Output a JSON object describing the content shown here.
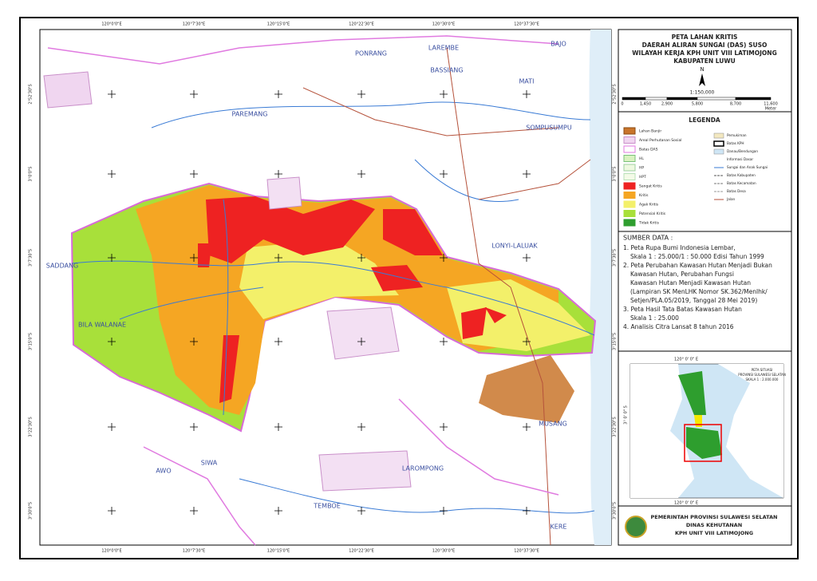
{
  "title": [
    "PETA LAHAN KRITIS",
    "DAERAH ALIRAN SUNGAI (DAS) SUSO",
    "WILAYAH KERJA KPH UNIT VIII LATIMOJONG",
    "KABUPATEN LUWU"
  ],
  "north": "N",
  "scale": {
    "ratio": "1:150,000",
    "ticks": [
      "0",
      "1,450",
      "2,900",
      "5,800",
      "8,700",
      "11,600"
    ],
    "unit": "Meter"
  },
  "legend": {
    "title": "LEGENDA",
    "left": [
      "Lahan Banjir",
      "Areal Perhutanan Sosial",
      "Batas DAS",
      "HL",
      "HP",
      "HPT",
      "Sangat Kritis",
      "Kritis",
      "Agak Kritis",
      "Potensial Kritis",
      "Tidak Kritis"
    ],
    "right": [
      "Pemukiman",
      "Batas KPH",
      "Danau/Bendungan",
      "Informasi Dasar",
      "Sungai dan Anak Sungai",
      "Batas Kabupaten",
      "Batas Kecamatan",
      "Batas Desa",
      "Jalan"
    ]
  },
  "sources": {
    "heading": "SUMBER DATA :",
    "lines": [
      "1. Peta Rupa Bumi Indonesia Lembar,",
      "Skala 1 : 25.000/1 : 50.000 Edisi Tahun 1999",
      "2. Peta Perubahan Kawasan Hutan Menjadi Bukan",
      "Kawasan Hutan, Perubahan Fungsi",
      "Kawasan Hutan Menjadi Kawasan Hutan",
      "(Lampiran SK MenLHK Nomor SK.362/Menlhk/",
      "Setjen/PLA.05/2019, Tanggal 28 Mei 2019)",
      "3. Peta Hasil Tata Batas Kawasan Hutan",
      "Skala 1 : 25.000",
      "4. Analisis Citra Lansat 8 tahun 2016"
    ]
  },
  "inset": {
    "lines": [
      "PETA SITUASI",
      "PROVINSI SULAWESI SELATAN",
      "SKALA 1 : 2.000.000"
    ],
    "lon": "120° 0' 0\" E",
    "lat": "3° 0' 0\" S"
  },
  "footer": [
    "PEMERINTAH PROVINSI SULAWESI SELATAN",
    "DINAS KEHUTANAN",
    "KPH UNIT VIII LATIMOJONG"
  ],
  "coords": {
    "lon": [
      "120°0'0\"E",
      "120°7'30\"E",
      "120°15'0\"E",
      "120°22'30\"E",
      "120°30'0\"E",
      "120°37'30\"E"
    ],
    "lat": [
      "2°52'30\"S",
      "3°0'0\"S",
      "3°7'30\"S",
      "3°15'0\"S",
      "3°22'30\"S",
      "3°30'0\"S"
    ]
  },
  "places": [
    "PONRANG",
    "LAREMBE",
    "BASSIANG",
    "MATI",
    "SOMPUSUMPU",
    "PAREMANG",
    "SADDANG",
    "BILA WALANAE",
    "LONYI-LALUAK",
    "SIWA",
    "AWO",
    "TEMBOE",
    "LAROMPONG",
    "KERE",
    "MUSANG",
    "BAJO"
  ]
}
